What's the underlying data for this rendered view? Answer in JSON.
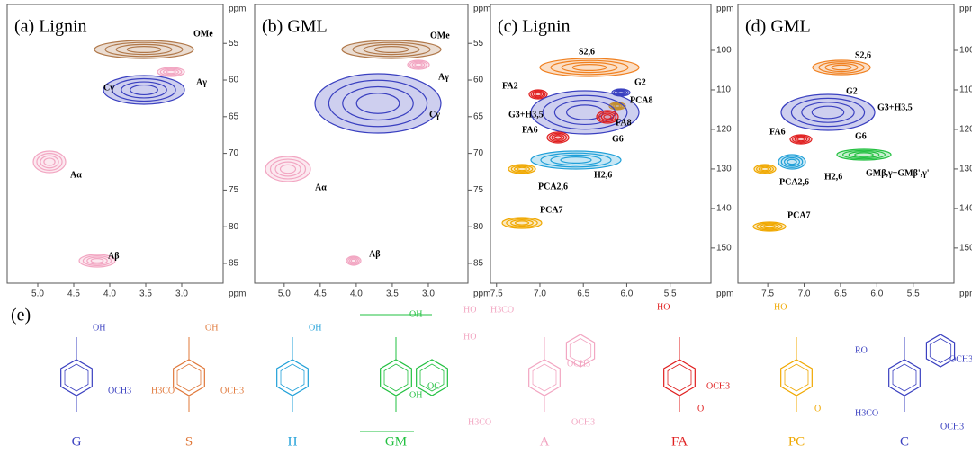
{
  "panels": [
    {
      "title": "(a) Lignin",
      "x_unit": "ppm",
      "y_unit": "ppm",
      "xlim": [
        5.425,
        2.425
      ],
      "ylim": [
        49.7,
        87.7
      ],
      "xticks": [
        {
          "value": 5,
          "label": "5.0"
        },
        4.5,
        {
          "value": 4,
          "label": "4.0"
        },
        3.5,
        {
          "value": 3,
          "label": "3.0"
        }
      ],
      "yticks": [
        55,
        60,
        65,
        70,
        75,
        80,
        85
      ],
      "annotations": [
        "OMe",
        "Aγ",
        "Cγ",
        "Aα",
        "Aβ"
      ]
    },
    {
      "title": "(b) GML",
      "x_unit": "ppm",
      "y_unit": "ppm",
      "xlim": [
        5.41,
        2.45
      ],
      "ylim": [
        49.7,
        87.7
      ],
      "xticks": [
        {
          "value": 5,
          "label": "5.0"
        },
        4.5,
        {
          "value": 4,
          "label": "4.0"
        },
        3.5,
        {
          "value": 3,
          "label": "3.0"
        }
      ],
      "yticks": [
        55,
        60,
        65,
        70,
        75,
        80,
        85
      ],
      "annotations": [
        "OMe",
        "Aγ",
        "Cγ",
        "Aα",
        "Aβ"
      ]
    },
    {
      "title": "(c) Lignin",
      "x_unit": "ppm",
      "y_unit": "ppm",
      "xlim": [
        7.57,
        5.03
      ],
      "ylim": [
        88.4,
        158.9
      ],
      "xticks": [
        7.5,
        {
          "value": 7,
          "label": "7.0"
        },
        6.5,
        {
          "value": 6,
          "label": "6.0"
        },
        5.5
      ],
      "yticks": [
        100,
        110,
        120,
        130,
        140,
        150
      ],
      "annotations": [
        "S2,6",
        "G2",
        "FA2",
        "PCA8",
        "G3+H3,5",
        "FA8",
        "FA6",
        "G6",
        "H2,6",
        "PCA2,6",
        "PCA7"
      ]
    },
    {
      "title": "(d) GML",
      "x_unit": "ppm",
      "y_unit": "ppm",
      "xlim": [
        7.91,
        4.94
      ],
      "ylim": [
        88.4,
        158.9
      ],
      "xticks": [
        7.5,
        {
          "value": 7,
          "label": "7.0"
        },
        6.5,
        {
          "value": 6,
          "label": "6.0"
        },
        5.5
      ],
      "yticks": [
        100,
        110,
        120,
        130,
        140,
        150
      ],
      "annotations": [
        "S2,6",
        "G2",
        "G3+H3,5",
        "FA6",
        "G6",
        "GMβ,γ+GMβ',γ'",
        "PCA2,6",
        "H2,6",
        "PCA7"
      ]
    }
  ],
  "structures_label": "(e)",
  "structures": [
    {
      "label": "G",
      "groups": [
        "OH",
        "OCH3"
      ]
    },
    {
      "label": "S",
      "groups": [
        "OH",
        "H3CO",
        "OCH3"
      ]
    },
    {
      "label": "H",
      "groups": [
        "OH"
      ]
    },
    {
      "label": "GM",
      "groups": [
        "OH",
        "OH",
        "OC"
      ]
    },
    {
      "label": "A",
      "groups": [
        "HO",
        "H3CO",
        "HO",
        "OCH3",
        "H3CO",
        "OCH3"
      ]
    },
    {
      "label": "FA",
      "groups": [
        "HO",
        "O",
        "OCH3"
      ]
    },
    {
      "label": "PC",
      "groups": [
        "HO",
        "O"
      ]
    },
    {
      "label": "C",
      "groups": [
        "RO",
        "OCH3",
        "H3CO",
        "OCH3"
      ]
    }
  ]
}
